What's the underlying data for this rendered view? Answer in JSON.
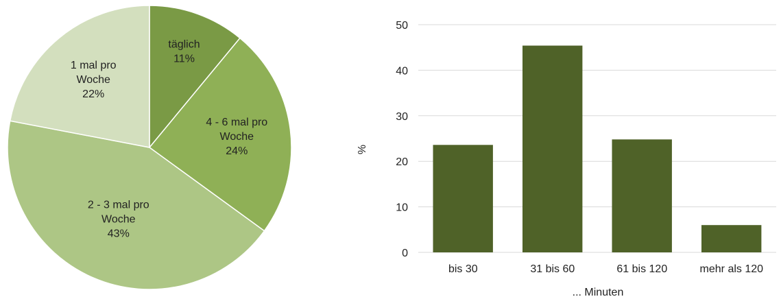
{
  "chart_data": [
    {
      "type": "pie",
      "slices": [
        {
          "label": "täglich",
          "value": 11,
          "percent_label": "11%",
          "color": "#7a9a45"
        },
        {
          "label": "4 - 6 mal pro Woche",
          "value": 24,
          "percent_label": "24%",
          "color": "#8fb056"
        },
        {
          "label": "2 - 3 mal pro Woche",
          "value": 43,
          "percent_label": "43%",
          "color": "#adc685"
        },
        {
          "label": "1 mal pro Woche",
          "value": 22,
          "percent_label": "22%",
          "color": "#d3dfbe"
        }
      ]
    },
    {
      "type": "bar",
      "categories": [
        "bis 30",
        "31 bis 60",
        "61 bis 120",
        "mehr als 120"
      ],
      "values": [
        23.6,
        45.4,
        24.8,
        6.0
      ],
      "xlabel": "... Minuten",
      "ylabel": "%",
      "ylim": [
        0,
        50
      ],
      "yticks": [
        0,
        10,
        20,
        30,
        40,
        50
      ],
      "grid": true,
      "bar_color": "#4f6228",
      "grid_color": "#d9d9d9"
    }
  ]
}
